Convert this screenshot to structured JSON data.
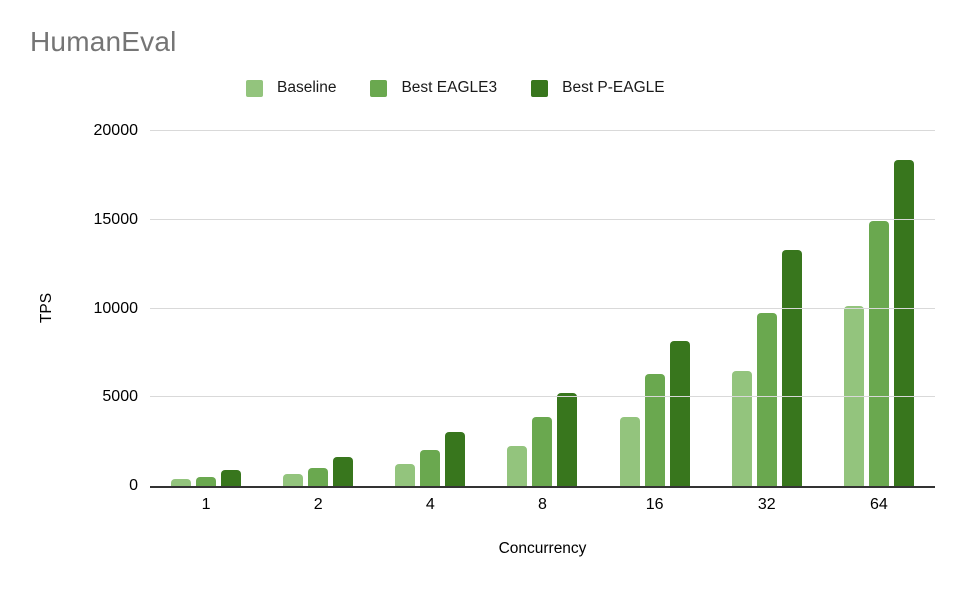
{
  "title": "HumanEval",
  "chart_data": {
    "type": "bar",
    "title": "HumanEval",
    "xlabel": "Concurrency",
    "ylabel": "TPS",
    "categories": [
      "1",
      "2",
      "4",
      "8",
      "16",
      "32",
      "64"
    ],
    "series": [
      {
        "name": "Baseline",
        "color": "#93c47d",
        "values": [
          420,
          700,
          1240,
          2250,
          3880,
          6460,
          10150
        ]
      },
      {
        "name": "Best EAGLE3",
        "color": "#6aa84f",
        "values": [
          520,
          1030,
          2050,
          3880,
          6300,
          9730,
          14950
        ]
      },
      {
        "name": "Best P-EAGLE",
        "color": "#38761d",
        "values": [
          880,
          1660,
          3070,
          5250,
          8170,
          13300,
          18350
        ]
      }
    ],
    "ylim": [
      0,
      20000
    ],
    "yticks": [
      0,
      5000,
      10000,
      15000,
      20000
    ],
    "grid": true,
    "legend_position": "top"
  },
  "colors": {
    "title_text": "#757575",
    "axis_text": "#000000",
    "gridline": "#d9d9d9",
    "axis_line": "#333333",
    "background": "#ffffff"
  }
}
